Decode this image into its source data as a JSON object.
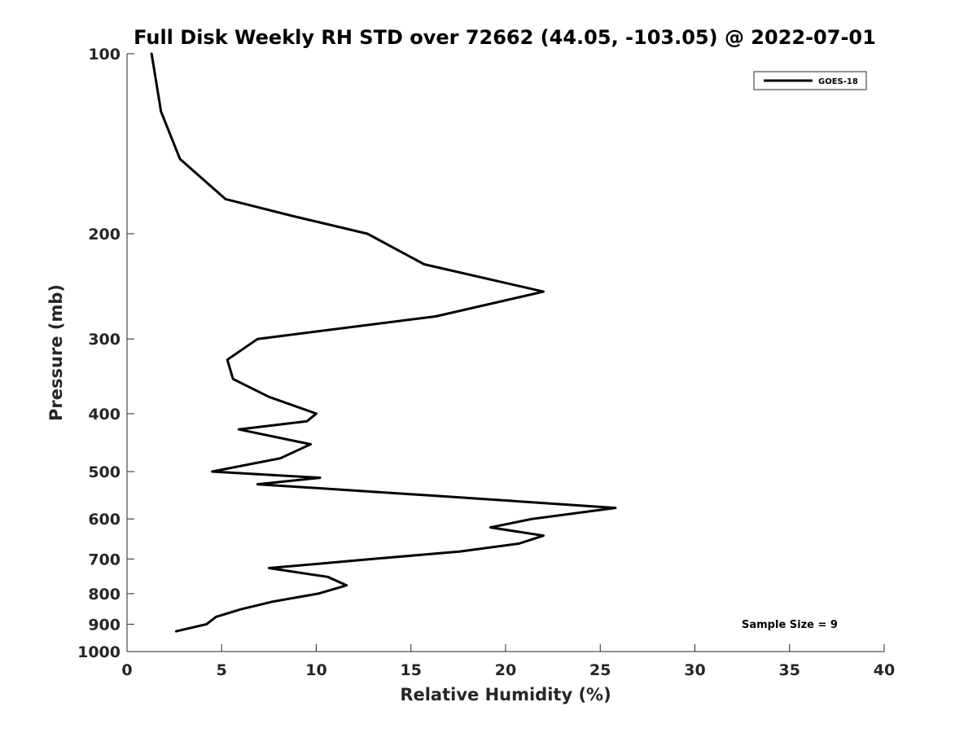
{
  "chart_data": {
    "type": "line",
    "title": "Full Disk Weekly RH STD over 72662 (44.05, -103.05) @ 2022-07-01",
    "xlabel": "Relative Humidity (%)",
    "ylabel": "Pressure (mb)",
    "xlim": [
      0,
      40
    ],
    "ylim": [
      100,
      1000
    ],
    "y_scale": "log",
    "y_reversed": true,
    "x_ticks": [
      0,
      5,
      10,
      15,
      20,
      25,
      30,
      35,
      40
    ],
    "y_ticks": [
      100,
      200,
      300,
      400,
      500,
      600,
      700,
      800,
      900,
      1000
    ],
    "grid": false,
    "legend_position": "top-right",
    "annotation": "Sample Size = 9",
    "line_color": "#000000",
    "series": [
      {
        "name": "GOES-18",
        "points": [
          {
            "rh": 1.3,
            "p": 100
          },
          {
            "rh": 1.8,
            "p": 125
          },
          {
            "rh": 2.8,
            "p": 150
          },
          {
            "rh": 5.2,
            "p": 175
          },
          {
            "rh": 8.8,
            "p": 187
          },
          {
            "rh": 12.7,
            "p": 200
          },
          {
            "rh": 15.7,
            "p": 225
          },
          {
            "rh": 22.0,
            "p": 250
          },
          {
            "rh": 16.3,
            "p": 275
          },
          {
            "rh": 6.9,
            "p": 300
          },
          {
            "rh": 5.3,
            "p": 325
          },
          {
            "rh": 5.6,
            "p": 350
          },
          {
            "rh": 7.5,
            "p": 375
          },
          {
            "rh": 10.0,
            "p": 400
          },
          {
            "rh": 9.5,
            "p": 412
          },
          {
            "rh": 5.9,
            "p": 425
          },
          {
            "rh": 9.7,
            "p": 450
          },
          {
            "rh": 8.1,
            "p": 475
          },
          {
            "rh": 4.5,
            "p": 500
          },
          {
            "rh": 10.2,
            "p": 512
          },
          {
            "rh": 6.9,
            "p": 525
          },
          {
            "rh": 16.7,
            "p": 550
          },
          {
            "rh": 25.8,
            "p": 575
          },
          {
            "rh": 21.4,
            "p": 600
          },
          {
            "rh": 19.2,
            "p": 620
          },
          {
            "rh": 22.0,
            "p": 640
          },
          {
            "rh": 20.7,
            "p": 660
          },
          {
            "rh": 17.6,
            "p": 680
          },
          {
            "rh": 13.0,
            "p": 700
          },
          {
            "rh": 7.5,
            "p": 725
          },
          {
            "rh": 10.6,
            "p": 750
          },
          {
            "rh": 11.6,
            "p": 775
          },
          {
            "rh": 10.1,
            "p": 800
          },
          {
            "rh": 7.7,
            "p": 825
          },
          {
            "rh": 6.0,
            "p": 850
          },
          {
            "rh": 4.7,
            "p": 875
          },
          {
            "rh": 4.2,
            "p": 900
          },
          {
            "rh": 2.6,
            "p": 925
          }
        ]
      }
    ]
  }
}
